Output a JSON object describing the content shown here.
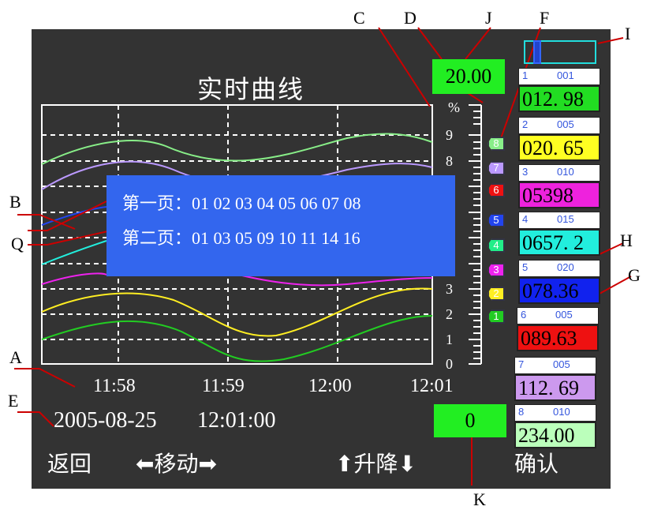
{
  "title": "实时曲线",
  "top_value": "20.00",
  "bottom_value": "0",
  "date": "2005-08-25",
  "time": "12:01:00",
  "footer": {
    "back": "返回",
    "move": "移动",
    "updown": "升降",
    "confirm": "确认"
  },
  "popup": {
    "line1": "第一页：01 02 03 04 05 06 07 08",
    "line2": "第二页：01 03 05 09 10 11 14 16"
  },
  "x_ticks": [
    "11:58",
    "11:59",
    "12:00",
    "12:01"
  ],
  "scale": {
    "unit": "%",
    "labels": [
      "9",
      "8",
      "3",
      "2",
      "1",
      "0"
    ]
  },
  "markers": [
    {
      "label": "8",
      "color": "#88ee88"
    },
    {
      "label": "7",
      "color": "#bb99ff"
    },
    {
      "label": "6",
      "color": "#ee1111"
    },
    {
      "label": "5",
      "color": "#2244ee"
    },
    {
      "label": "4",
      "color": "#22ee88"
    },
    {
      "label": "3",
      "color": "#ee22ee"
    },
    {
      "label": "2",
      "color": "#ffee22"
    },
    {
      "label": "1",
      "color": "#22cc22"
    }
  ],
  "channels": [
    {
      "idx": "1",
      "code": "001",
      "value": "012. 98",
      "bg": "#22dd22",
      "color": "#000000"
    },
    {
      "idx": "2",
      "code": "005",
      "value": "020. 65",
      "bg": "#ffff22",
      "color": "#000000"
    },
    {
      "idx": "3",
      "code": "010",
      "value": "05398",
      "bg": "#ee22dd",
      "color": "#000000"
    },
    {
      "idx": "4",
      "code": "015",
      "value": "0657. 2",
      "bg": "#22eedd",
      "color": "#000000"
    },
    {
      "idx": "5",
      "code": "020",
      "value": "078.36",
      "bg": "#1122ee",
      "color": "#000000"
    },
    {
      "idx": "6",
      "code": "005",
      "value": "089.63",
      "bg": "#ee1111",
      "color": "#000000"
    },
    {
      "idx": "7",
      "code": "005",
      "value": "112. 69",
      "bg": "#cc99ee",
      "color": "#000000"
    },
    {
      "idx": "8",
      "code": "010",
      "value": "234.00",
      "bg": "#bbffbb",
      "color": "#000000"
    }
  ],
  "callouts": [
    "A",
    "B",
    "C",
    "D",
    "E",
    "F",
    "G",
    "H",
    "I",
    "J",
    "K",
    "Q"
  ]
}
